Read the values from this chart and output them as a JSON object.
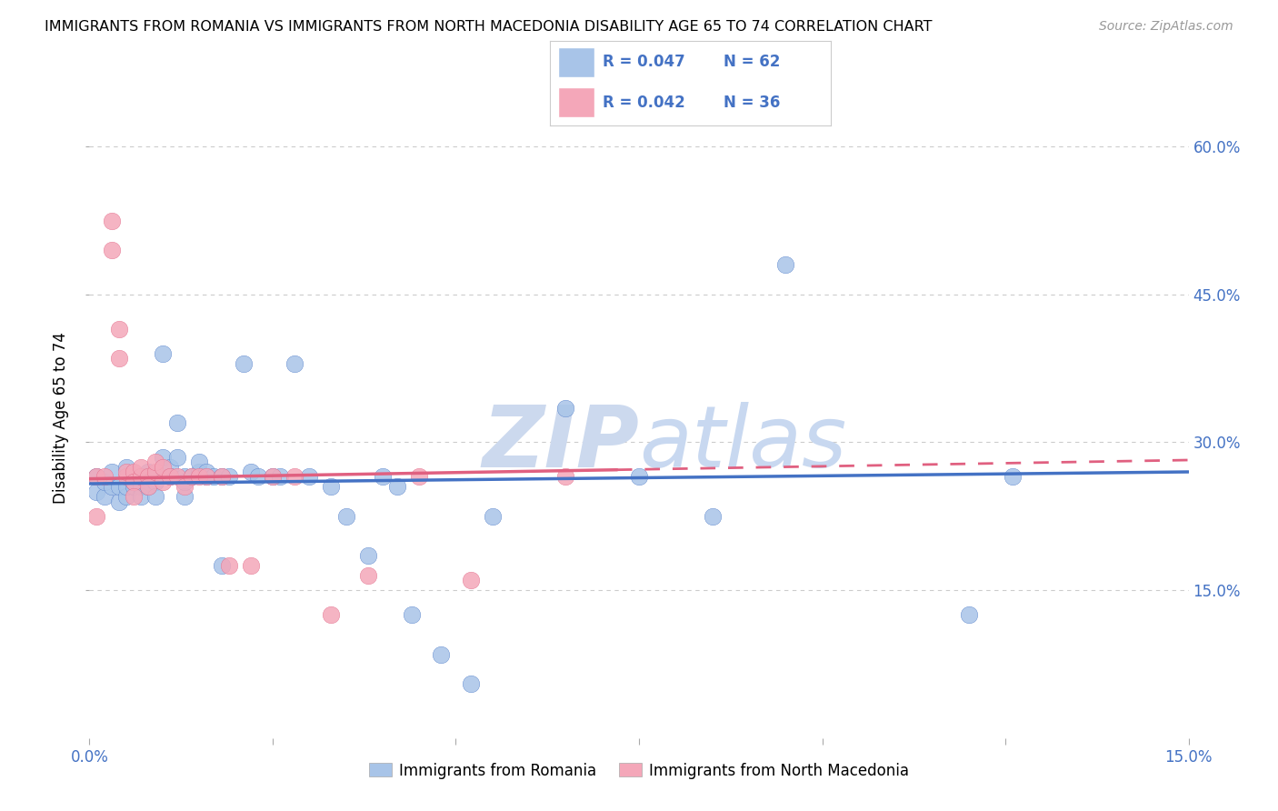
{
  "title": "IMMIGRANTS FROM ROMANIA VS IMMIGRANTS FROM NORTH MACEDONIA DISABILITY AGE 65 TO 74 CORRELATION CHART",
  "source": "Source: ZipAtlas.com",
  "ylabel": "Disability Age 65 to 74",
  "legend_romania": "Immigrants from Romania",
  "legend_macedonia": "Immigrants from North Macedonia",
  "R_romania": "0.047",
  "N_romania": "62",
  "R_macedonia": "0.042",
  "N_macedonia": "36",
  "color_romania": "#a8c4e8",
  "color_macedonia": "#f4a7b9",
  "color_romania_line": "#4472c4",
  "color_macedonia_line": "#e06080",
  "color_text_blue": "#4472c4",
  "watermark_color": "#ccd9ee",
  "background": "#ffffff",
  "xlim": [
    0.0,
    0.15
  ],
  "ylim": [
    0.0,
    0.65
  ],
  "romania_trend": [
    0.258,
    0.27
  ],
  "macedonia_trend": [
    0.263,
    0.282
  ],
  "romania_x": [
    0.001,
    0.001,
    0.002,
    0.002,
    0.003,
    0.003,
    0.004,
    0.004,
    0.005,
    0.005,
    0.005,
    0.006,
    0.006,
    0.007,
    0.007,
    0.007,
    0.008,
    0.008,
    0.008,
    0.009,
    0.009,
    0.009,
    0.01,
    0.01,
    0.011,
    0.011,
    0.012,
    0.012,
    0.013,
    0.013,
    0.013,
    0.014,
    0.015,
    0.015,
    0.016,
    0.016,
    0.017,
    0.018,
    0.018,
    0.019,
    0.021,
    0.022,
    0.023,
    0.025,
    0.026,
    0.028,
    0.03,
    0.033,
    0.035,
    0.038,
    0.04,
    0.042,
    0.044,
    0.048,
    0.052,
    0.055,
    0.065,
    0.075,
    0.085,
    0.095,
    0.12,
    0.126
  ],
  "romania_y": [
    0.265,
    0.25,
    0.245,
    0.26,
    0.27,
    0.255,
    0.24,
    0.255,
    0.275,
    0.245,
    0.255,
    0.255,
    0.26,
    0.255,
    0.245,
    0.265,
    0.27,
    0.265,
    0.255,
    0.265,
    0.26,
    0.245,
    0.39,
    0.285,
    0.275,
    0.265,
    0.32,
    0.285,
    0.265,
    0.245,
    0.26,
    0.265,
    0.27,
    0.28,
    0.265,
    0.27,
    0.265,
    0.265,
    0.175,
    0.265,
    0.38,
    0.27,
    0.265,
    0.265,
    0.265,
    0.38,
    0.265,
    0.255,
    0.225,
    0.185,
    0.265,
    0.255,
    0.125,
    0.085,
    0.055,
    0.225,
    0.335,
    0.265,
    0.225,
    0.48,
    0.125,
    0.265
  ],
  "macedonia_x": [
    0.001,
    0.001,
    0.002,
    0.003,
    0.003,
    0.004,
    0.004,
    0.005,
    0.005,
    0.006,
    0.006,
    0.006,
    0.007,
    0.007,
    0.008,
    0.008,
    0.009,
    0.009,
    0.01,
    0.01,
    0.011,
    0.012,
    0.013,
    0.014,
    0.015,
    0.016,
    0.018,
    0.019,
    0.022,
    0.025,
    0.028,
    0.033,
    0.038,
    0.045,
    0.052,
    0.065
  ],
  "macedonia_y": [
    0.265,
    0.225,
    0.265,
    0.525,
    0.495,
    0.415,
    0.385,
    0.265,
    0.27,
    0.27,
    0.26,
    0.245,
    0.265,
    0.275,
    0.265,
    0.255,
    0.27,
    0.28,
    0.26,
    0.275,
    0.265,
    0.265,
    0.255,
    0.265,
    0.265,
    0.265,
    0.265,
    0.175,
    0.175,
    0.265,
    0.265,
    0.125,
    0.165,
    0.265,
    0.16,
    0.265
  ]
}
